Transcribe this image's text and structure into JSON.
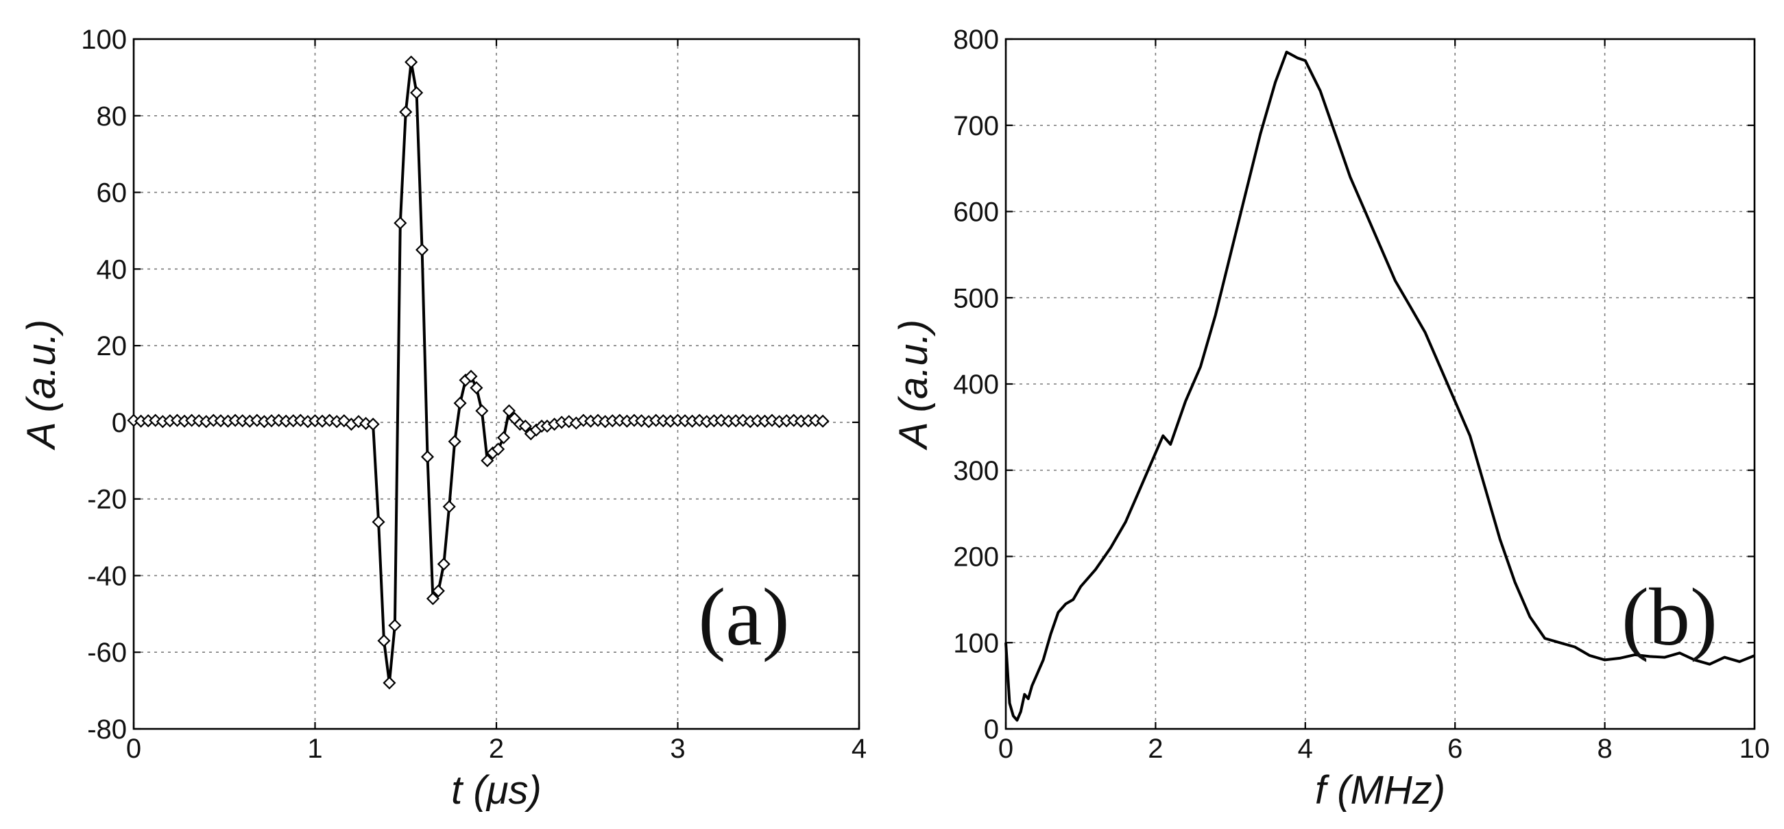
{
  "figure": {
    "panels": [
      {
        "tag": "(a)",
        "xlabel_var": "t",
        "xlabel_unit": " (μs)",
        "ylabel_var": "A",
        "ylabel_unit": " (a.u.)"
      },
      {
        "tag": "(b)",
        "xlabel_var": "f",
        "xlabel_unit": " (MHz)",
        "ylabel_var": "A",
        "ylabel_unit": " (a.u.)"
      }
    ]
  },
  "chart_data": [
    {
      "type": "line",
      "title": "",
      "panel_tag": "(a)",
      "xlabel": "t (μs)",
      "ylabel": "A (a.u.)",
      "xlim": [
        0,
        4
      ],
      "ylim": [
        -80,
        100
      ],
      "xticks": [
        0,
        1,
        2,
        3,
        4
      ],
      "yticks": [
        -80,
        -60,
        -40,
        -20,
        0,
        20,
        40,
        60,
        80,
        100
      ],
      "grid": true,
      "markers": "diamond",
      "series": [
        {
          "x": [
            0.0,
            0.04,
            0.08,
            0.12,
            0.16,
            0.2,
            0.24,
            0.28,
            0.32,
            0.36,
            0.4,
            0.44,
            0.48,
            0.52,
            0.56,
            0.6,
            0.64,
            0.68,
            0.72,
            0.76,
            0.8,
            0.84,
            0.88,
            0.92,
            0.96,
            1.0,
            1.04,
            1.08,
            1.12,
            1.16,
            1.2,
            1.24,
            1.28,
            1.32,
            1.35,
            1.38,
            1.41,
            1.44,
            1.47,
            1.5,
            1.53,
            1.56,
            1.59,
            1.62,
            1.65,
            1.68,
            1.71,
            1.74,
            1.77,
            1.8,
            1.83,
            1.86,
            1.89,
            1.92,
            1.95,
            1.98,
            2.01,
            2.04,
            2.07,
            2.1,
            2.13,
            2.16,
            2.19,
            2.22,
            2.25,
            2.28,
            2.32,
            2.36,
            2.4,
            2.44,
            2.48,
            2.52,
            2.56,
            2.6,
            2.64,
            2.68,
            2.72,
            2.76,
            2.8,
            2.84,
            2.88,
            2.92,
            2.96,
            3.0,
            3.04,
            3.08,
            3.12,
            3.16,
            3.2,
            3.24,
            3.28,
            3.32,
            3.36,
            3.4,
            3.44,
            3.48,
            3.52,
            3.56,
            3.6,
            3.64,
            3.68,
            3.72,
            3.76,
            3.8
          ],
          "y": [
            0.5,
            0.3,
            0.4,
            0.5,
            0.2,
            0.4,
            0.5,
            0.3,
            0.5,
            0.4,
            0.2,
            0.5,
            0.4,
            0.3,
            0.5,
            0.4,
            0.3,
            0.5,
            0.2,
            0.4,
            0.5,
            0.3,
            0.4,
            0.5,
            0.2,
            0.4,
            0.3,
            0.5,
            0.2,
            0.4,
            -0.5,
            0.2,
            -0.3,
            -0.5,
            -26,
            -57,
            -68,
            -53,
            52,
            81,
            94,
            86,
            45,
            -9,
            -46,
            -44,
            -37,
            -22,
            -5,
            5,
            11,
            12,
            9,
            3,
            -10,
            -8,
            -7,
            -4,
            3,
            1,
            -0.5,
            -1,
            -3,
            -2,
            -1,
            -1,
            -0.5,
            0,
            0.2,
            -0.2,
            0.5,
            0.3,
            0.5,
            0.2,
            0.4,
            0.5,
            0.3,
            0.5,
            0.4,
            0.2,
            0.5,
            0.4,
            0.3,
            0.5,
            0.4,
            0.3,
            0.5,
            0.2,
            0.4,
            0.5,
            0.3,
            0.4,
            0.5,
            0.2,
            0.4,
            0.3,
            0.5,
            0.2,
            0.4,
            0.5,
            0.3,
            0.4,
            0.5,
            0.3
          ]
        }
      ]
    },
    {
      "type": "line",
      "title": "",
      "panel_tag": "(b)",
      "xlabel": "f (MHz)",
      "ylabel": "A (a.u.)",
      "xlim": [
        0,
        10
      ],
      "ylim": [
        0,
        800
      ],
      "xticks": [
        0,
        2,
        4,
        6,
        8,
        10
      ],
      "yticks": [
        0,
        100,
        200,
        300,
        400,
        500,
        600,
        700,
        800
      ],
      "grid": true,
      "series": [
        {
          "x": [
            0.0,
            0.05,
            0.1,
            0.15,
            0.2,
            0.25,
            0.3,
            0.35,
            0.4,
            0.5,
            0.6,
            0.7,
            0.8,
            0.9,
            1.0,
            1.2,
            1.4,
            1.6,
            1.8,
            2.0,
            2.1,
            2.2,
            2.4,
            2.6,
            2.8,
            3.0,
            3.2,
            3.4,
            3.6,
            3.75,
            3.9,
            4.0,
            4.2,
            4.4,
            4.6,
            4.8,
            5.0,
            5.2,
            5.4,
            5.6,
            5.8,
            6.0,
            6.2,
            6.4,
            6.6,
            6.8,
            7.0,
            7.2,
            7.4,
            7.6,
            7.8,
            8.0,
            8.2,
            8.4,
            8.6,
            8.8,
            9.0,
            9.2,
            9.4,
            9.6,
            9.8,
            10.0
          ],
          "y": [
            100,
            30,
            15,
            10,
            20,
            40,
            35,
            50,
            60,
            80,
            110,
            135,
            145,
            150,
            165,
            185,
            210,
            240,
            280,
            320,
            340,
            330,
            380,
            420,
            480,
            550,
            620,
            690,
            750,
            785,
            778,
            775,
            740,
            690,
            640,
            600,
            560,
            520,
            490,
            460,
            420,
            380,
            340,
            280,
            220,
            170,
            130,
            105,
            100,
            95,
            85,
            80,
            82,
            86,
            84,
            83,
            88,
            80,
            75,
            83,
            78,
            85
          ]
        }
      ]
    }
  ]
}
